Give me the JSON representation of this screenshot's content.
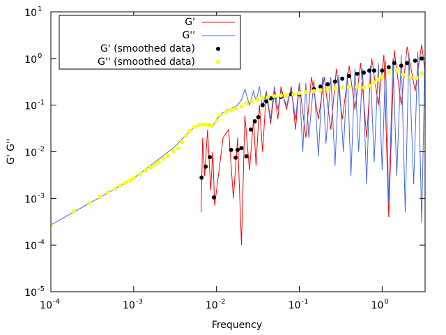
{
  "chart_data": {
    "type": "line",
    "x_label": "Frequency",
    "y_label": "G' G''",
    "xscale": "log",
    "yscale": "log",
    "xlim": [
      0.0001,
      3.3
    ],
    "ylim": [
      1e-05,
      10
    ],
    "xticks": [
      {
        "value": 0.0001,
        "label": "10",
        "sup": "-4"
      },
      {
        "value": 0.001,
        "label": "10",
        "sup": "-3"
      },
      {
        "value": 0.01,
        "label": "10",
        "sup": "-2"
      },
      {
        "value": 0.1,
        "label": "10",
        "sup": "-1"
      },
      {
        "value": 1,
        "label": "10",
        "sup": "0"
      }
    ],
    "yticks": [
      {
        "value": 1e-05,
        "label": "10",
        "sup": "-5"
      },
      {
        "value": 0.0001,
        "label": "10",
        "sup": "-4"
      },
      {
        "value": 0.001,
        "label": "10",
        "sup": "-3"
      },
      {
        "value": 0.01,
        "label": "10",
        "sup": "-2"
      },
      {
        "value": 0.1,
        "label": "10",
        "sup": "-1"
      },
      {
        "value": 1,
        "label": "10",
        "sup": "0"
      },
      {
        "value": 10,
        "label": "10",
        "sup": "1"
      }
    ],
    "legend": "top-left",
    "series": [
      {
        "name": "G'",
        "color": "#ff0000",
        "style": "line",
        "x": [
          0.0065,
          0.0068,
          0.0072,
          0.0078,
          0.0085,
          0.009,
          0.0095,
          0.012,
          0.014,
          0.016,
          0.018,
          0.02,
          0.022,
          0.025,
          0.028,
          0.03,
          0.033,
          0.036,
          0.04,
          0.045,
          0.05,
          0.055,
          0.06,
          0.07,
          0.08,
          0.09,
          0.1,
          0.12,
          0.14,
          0.17,
          0.2,
          0.24,
          0.28,
          0.33,
          0.4,
          0.47,
          0.55,
          0.65,
          0.75,
          0.9,
          1.05,
          1.2,
          1.4,
          1.7,
          2.0,
          2.5,
          3.0,
          3.3
        ],
        "values": [
          0.0005,
          0.02,
          0.003,
          0.03,
          0.0015,
          0.01,
          0.0007,
          0.02,
          0.03,
          0.001,
          0.02,
          0.0001,
          0.06,
          0.004,
          0.05,
          0.005,
          0.1,
          0.01,
          0.2,
          0.04,
          0.2,
          0.05,
          0.25,
          0.08,
          0.25,
          0.03,
          0.3,
          0.02,
          0.4,
          0.05,
          0.4,
          0.03,
          0.6,
          0.05,
          0.7,
          0.08,
          0.8,
          0.02,
          1.0,
          0.1,
          1.2,
          0.0004,
          1.5,
          0.1,
          1.8,
          0.2,
          2.0,
          0.5
        ]
      },
      {
        "name": "G''",
        "color": "#4169e1",
        "style": "line",
        "x": [
          0.0001,
          0.001,
          0.003,
          0.005,
          0.006,
          0.008,
          0.009,
          0.01,
          0.012,
          0.015,
          0.018,
          0.02,
          0.022,
          0.025,
          0.028,
          0.03,
          0.033,
          0.036,
          0.04,
          0.045,
          0.05,
          0.055,
          0.06,
          0.07,
          0.08,
          0.09,
          0.1,
          0.11,
          0.12,
          0.13,
          0.15,
          0.17,
          0.19,
          0.21,
          0.24,
          0.27,
          0.3,
          0.34,
          0.38,
          0.42,
          0.47,
          0.52,
          0.58,
          0.65,
          0.72,
          0.8,
          0.9,
          1.0,
          1.1,
          1.2,
          1.35,
          1.5,
          1.7,
          1.9,
          2.1,
          2.4,
          2.7,
          3.0,
          3.3
        ],
        "values": [
          0.00027,
          0.0027,
          0.012,
          0.03,
          0.037,
          0.04,
          0.035,
          0.05,
          0.07,
          0.085,
          0.1,
          0.13,
          0.22,
          0.1,
          0.2,
          0.12,
          0.25,
          0.09,
          0.2,
          0.05,
          0.25,
          0.08,
          0.2,
          0.1,
          0.22,
          0.05,
          0.3,
          0.01,
          0.3,
          0.02,
          0.35,
          0.008,
          0.4,
          0.015,
          0.4,
          0.005,
          0.45,
          0.01,
          0.5,
          0.003,
          0.6,
          0.01,
          0.6,
          0.002,
          0.7,
          0.006,
          0.8,
          0.004,
          0.9,
          0.0008,
          1.0,
          0.003,
          1.2,
          0.0005,
          1.3,
          0.002,
          1.4,
          0.0003,
          1.5
        ]
      },
      {
        "name": "G' (smoothed data)",
        "color": "#000000",
        "style": "points",
        "x": [
          0.0066,
          0.0074,
          0.0083,
          0.0093,
          0.015,
          0.017,
          0.018,
          0.02,
          0.023,
          0.026,
          0.029,
          0.032,
          0.036,
          0.04,
          0.045,
          0.05,
          0.06,
          0.07,
          0.08,
          0.1,
          0.12,
          0.15,
          0.18,
          0.22,
          0.27,
          0.33,
          0.4,
          0.5,
          0.6,
          0.7,
          0.8,
          1.0,
          1.2,
          1.4,
          1.7,
          2.0,
          2.5,
          3.0
        ],
        "values": [
          0.0028,
          0.0048,
          0.0077,
          0.00105,
          0.011,
          0.0075,
          0.011,
          0.012,
          0.008,
          0.03,
          0.045,
          0.055,
          0.1,
          0.12,
          0.14,
          0.15,
          0.15,
          0.16,
          0.17,
          0.17,
          0.19,
          0.22,
          0.25,
          0.28,
          0.32,
          0.37,
          0.42,
          0.47,
          0.5,
          0.55,
          0.55,
          0.55,
          0.65,
          0.8,
          0.7,
          0.8,
          0.9,
          1.0
        ]
      },
      {
        "name": "G'' (smoothed data)",
        "color": "#ffff00",
        "style": "points",
        "x": [
          0.0001,
          0.00019,
          0.00029,
          0.00039,
          0.00049,
          0.00059,
          0.00069,
          0.00079,
          0.00089,
          0.00099,
          0.0012,
          0.0014,
          0.0016,
          0.0018,
          0.002,
          0.0023,
          0.0026,
          0.003,
          0.0034,
          0.0038,
          0.0043,
          0.0048,
          0.0054,
          0.0061,
          0.0069,
          0.0078,
          0.0088,
          0.01,
          0.011,
          0.013,
          0.015,
          0.017,
          0.02,
          0.023,
          0.027,
          0.031,
          0.036,
          0.042,
          0.05,
          0.06,
          0.07,
          0.085,
          0.1,
          0.12,
          0.15,
          0.18,
          0.22,
          0.27,
          0.33,
          0.4,
          0.5,
          0.6,
          0.7,
          0.8,
          0.9,
          1.0,
          1.2,
          1.5,
          1.8,
          2.2,
          2.6,
          3.0
        ],
        "values": [
          0.00027,
          0.00053,
          0.0008,
          0.00108,
          0.00135,
          0.0016,
          0.0019,
          0.00215,
          0.0024,
          0.0027,
          0.0033,
          0.004,
          0.0046,
          0.0053,
          0.006,
          0.007,
          0.0082,
          0.0102,
          0.012,
          0.016,
          0.022,
          0.028,
          0.034,
          0.037,
          0.038,
          0.037,
          0.036,
          0.045,
          0.06,
          0.07,
          0.078,
          0.085,
          0.095,
          0.11,
          0.12,
          0.13,
          0.14,
          0.15,
          0.155,
          0.16,
          0.16,
          0.17,
          0.18,
          0.19,
          0.2,
          0.21,
          0.22,
          0.23,
          0.24,
          0.25,
          0.25,
          0.24,
          0.26,
          0.3,
          0.35,
          0.4,
          0.5,
          0.55,
          0.45,
          0.4,
          0.38,
          0.48
        ]
      }
    ]
  }
}
